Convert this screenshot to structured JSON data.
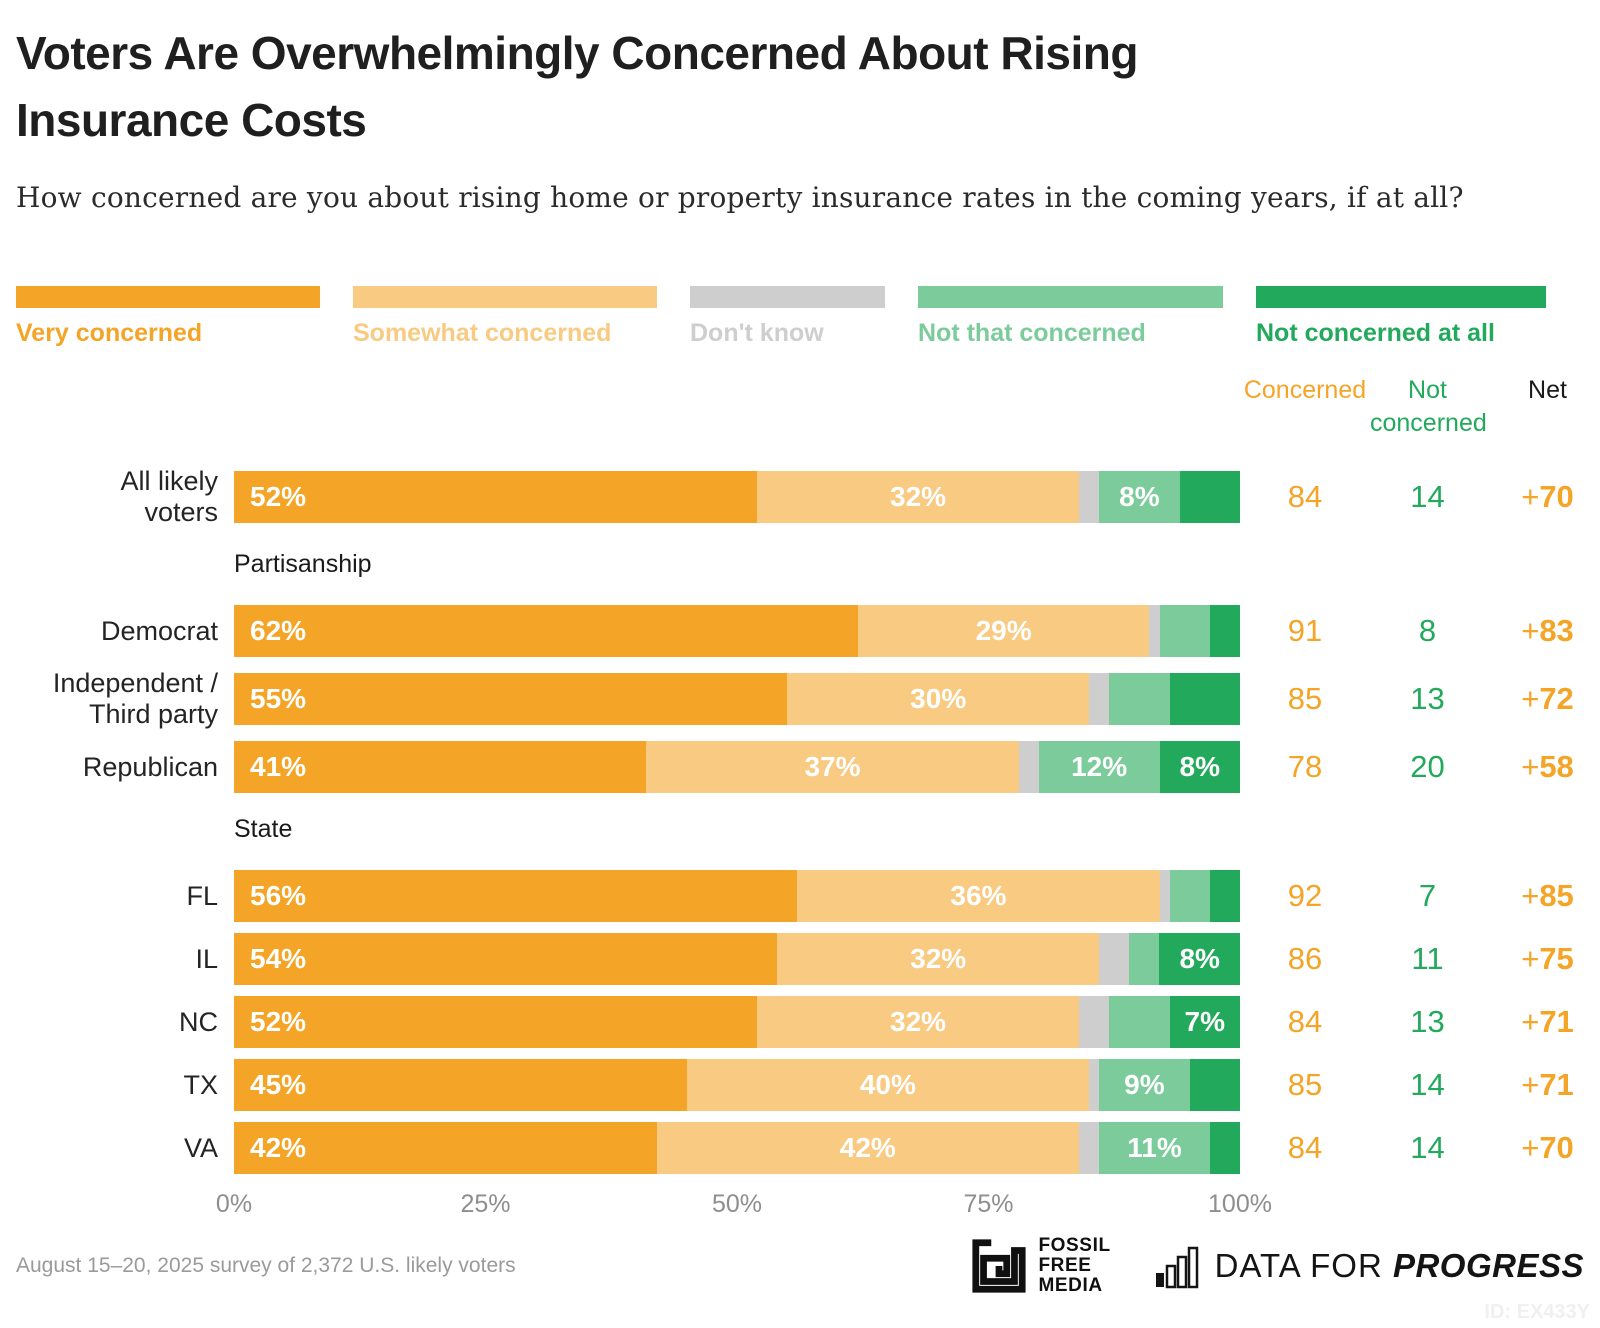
{
  "title_line1": "Voters Are Overwhelmingly Concerned About Rising",
  "title_line2": "Insurance Costs",
  "subtitle": "How concerned are you about rising home or property insurance rates in the coming years, if at all?",
  "series_colors": [
    "#F4A426",
    "#F9CA81",
    "#CECECE",
    "#7CCB9B",
    "#23A95C"
  ],
  "legend": [
    {
      "label": "Very concerned",
      "color": "#F4A426"
    },
    {
      "label": "Somewhat concerned",
      "color": "#F9CA81"
    },
    {
      "label": "Don't know",
      "color": "#CECECE"
    },
    {
      "label": "Not that concerned",
      "color": "#7CCB9B"
    },
    {
      "label": "Not concerned at all",
      "color": "#23A95C"
    }
  ],
  "stats_header": {
    "concerned": "Concerned",
    "not_concerned_line1": "Not",
    "not_concerned_line2": "concerned",
    "net": "Net"
  },
  "rows": [
    {
      "section": null,
      "label_lines": [
        "All likely",
        "voters"
      ],
      "segments": [
        52,
        32,
        2,
        8,
        6
      ],
      "segment_labels": [
        "52%",
        "32%",
        "",
        "8%",
        ""
      ],
      "concerned": "84",
      "not_concerned": "14",
      "net": "+70"
    },
    {
      "section": "Partisanship",
      "label_lines": [
        "Democrat"
      ],
      "segments": [
        62,
        29,
        1,
        5,
        3
      ],
      "segment_labels": [
        "62%",
        "29%",
        "",
        "",
        ""
      ],
      "concerned": "91",
      "not_concerned": "8",
      "net": "+83"
    },
    {
      "section": null,
      "label_lines": [
        "Independent /",
        "Third party"
      ],
      "segments": [
        55,
        30,
        2,
        6,
        7
      ],
      "segment_labels": [
        "55%",
        "30%",
        "",
        "",
        ""
      ],
      "concerned": "85",
      "not_concerned": "13",
      "net": "+72"
    },
    {
      "section": null,
      "label_lines": [
        "Republican"
      ],
      "segments": [
        41,
        37,
        2,
        12,
        8
      ],
      "segment_labels": [
        "41%",
        "37%",
        "",
        "12%",
        "8%"
      ],
      "concerned": "78",
      "not_concerned": "20",
      "net": "+58"
    },
    {
      "section": "State",
      "label_lines": [
        "FL"
      ],
      "segments": [
        56,
        36,
        1,
        4,
        3
      ],
      "segment_labels": [
        "56%",
        "36%",
        "",
        "",
        ""
      ],
      "concerned": "92",
      "not_concerned": "7",
      "net": "+85"
    },
    {
      "section": null,
      "label_lines": [
        "IL"
      ],
      "segments": [
        54,
        32,
        3,
        3,
        8
      ],
      "segment_labels": [
        "54%",
        "32%",
        "",
        "",
        "8%"
      ],
      "concerned": "86",
      "not_concerned": "11",
      "net": "+75"
    },
    {
      "section": null,
      "label_lines": [
        "NC"
      ],
      "segments": [
        52,
        32,
        3,
        6,
        7
      ],
      "segment_labels": [
        "52%",
        "32%",
        "",
        "",
        "7%"
      ],
      "concerned": "84",
      "not_concerned": "13",
      "net": "+71"
    },
    {
      "section": null,
      "label_lines": [
        "TX"
      ],
      "segments": [
        45,
        40,
        1,
        9,
        5
      ],
      "segment_labels": [
        "45%",
        "40%",
        "",
        "9%",
        ""
      ],
      "concerned": "85",
      "not_concerned": "14",
      "net": "+71"
    },
    {
      "section": null,
      "label_lines": [
        "VA"
      ],
      "segments": [
        42,
        42,
        2,
        11,
        3
      ],
      "segment_labels": [
        "42%",
        "42%",
        "",
        "11%",
        ""
      ],
      "concerned": "84",
      "not_concerned": "14",
      "net": "+70"
    }
  ],
  "x_axis": [
    "0%",
    "25%",
    "50%",
    "75%",
    "100%"
  ],
  "footer": {
    "source": "August 15–20, 2025 survey of 2,372 U.S. likely voters",
    "fossil_logo_lines": [
      "FOSSIL",
      "FREE",
      "MEDIA"
    ],
    "dfp_regular": "DATA FOR ",
    "dfp_bold": "PROGRESS",
    "id": "ID: EX433Y"
  },
  "chart_data": {
    "type": "bar",
    "stacked": true,
    "orientation": "horizontal",
    "title": "Voters Are Overwhelmingly Concerned About Rising Insurance Costs",
    "question": "How concerned are you about rising home or property insurance rates in the coming years, if at all?",
    "categories": [
      "All likely voters",
      "Democrat",
      "Independent / Third party",
      "Republican",
      "FL",
      "IL",
      "NC",
      "TX",
      "VA"
    ],
    "category_groups": {
      "Partisanship": [
        "Democrat",
        "Independent / Third party",
        "Republican"
      ],
      "State": [
        "FL",
        "IL",
        "NC",
        "TX",
        "VA"
      ]
    },
    "series": [
      {
        "name": "Very concerned",
        "color": "#F4A426",
        "values": [
          52,
          62,
          55,
          41,
          56,
          54,
          52,
          45,
          42
        ]
      },
      {
        "name": "Somewhat concerned",
        "color": "#F9CA81",
        "values": [
          32,
          29,
          30,
          37,
          36,
          32,
          32,
          40,
          42
        ]
      },
      {
        "name": "Don't know",
        "color": "#CECECE",
        "values": [
          2,
          1,
          2,
          2,
          1,
          3,
          3,
          1,
          2
        ]
      },
      {
        "name": "Not that concerned",
        "color": "#7CCB9B",
        "values": [
          8,
          5,
          6,
          12,
          4,
          3,
          6,
          9,
          11
        ]
      },
      {
        "name": "Not concerned at all",
        "color": "#23A95C",
        "values": [
          6,
          3,
          7,
          8,
          3,
          8,
          7,
          5,
          3
        ]
      }
    ],
    "summary_columns": {
      "Concerned": [
        84,
        91,
        85,
        78,
        92,
        86,
        84,
        85,
        84
      ],
      "Not concerned": [
        14,
        8,
        13,
        20,
        7,
        11,
        13,
        14,
        14
      ],
      "Net": [
        "+70",
        "+83",
        "+72",
        "+58",
        "+85",
        "+75",
        "+71",
        "+71",
        "+70"
      ]
    },
    "xlim": [
      0,
      100
    ],
    "x_ticks": [
      "0%",
      "25%",
      "50%",
      "75%",
      "100%"
    ],
    "legend_position": "top",
    "grid": false
  }
}
